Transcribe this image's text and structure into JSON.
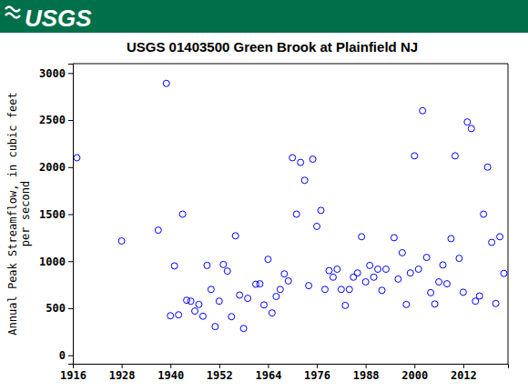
{
  "header": {
    "logo": "USGS"
  },
  "chart_data": {
    "type": "scatter",
    "title": "USGS 01403500 Green Brook at Plainfield NJ",
    "ylabel": [
      "Annual Peak Streamflow, in cubic feet",
      "per second"
    ],
    "x": [
      1917,
      1928,
      1937,
      1939,
      1940,
      1941,
      1942,
      1943,
      1944,
      1945,
      1946,
      1947,
      1948,
      1949,
      1950,
      1951,
      1952,
      1953,
      1954,
      1955,
      1956,
      1957,
      1958,
      1959,
      1961,
      1962,
      1963,
      1964,
      1965,
      1966,
      1967,
      1968,
      1969,
      1970,
      1971,
      1972,
      1973,
      1974,
      1975,
      1976,
      1977,
      1978,
      1979,
      1980,
      1981,
      1982,
      1983,
      1984,
      1985,
      1986,
      1987,
      1988,
      1989,
      1990,
      1991,
      1992,
      1993,
      1995,
      1996,
      1997,
      1998,
      1999,
      2000,
      2001,
      2002,
      2003,
      2004,
      2005,
      2006,
      2007,
      2008,
      2009,
      2010,
      2011,
      2012,
      2013,
      2014,
      2015,
      2016,
      2017,
      2018,
      2019,
      2020,
      2021,
      2022
    ],
    "values": [
      2100,
      1215,
      1330,
      2890,
      420,
      950,
      430,
      1500,
      585,
      575,
      470,
      540,
      415,
      955,
      700,
      305,
      575,
      965,
      895,
      410,
      1270,
      640,
      285,
      605,
      755,
      760,
      535,
      1020,
      450,
      625,
      700,
      865,
      790,
      2100,
      1500,
      2050,
      1860,
      740,
      2085,
      1370,
      1540,
      700,
      900,
      830,
      915,
      700,
      530,
      700,
      830,
      875,
      1260,
      780,
      955,
      830,
      915,
      690,
      915,
      1250,
      810,
      1090,
      540,
      875,
      2120,
      915,
      2600,
      1040,
      665,
      545,
      780,
      960,
      760,
      1240,
      2120,
      1030,
      670,
      2480,
      2410,
      575,
      630,
      1500,
      2000,
      1200,
      550,
      1260,
      870
    ],
    "color": "#0000ff",
    "marker": "circle-open",
    "xlim": [
      1916,
      2023
    ],
    "xticks": [
      1916,
      1928,
      1940,
      1952,
      1964,
      1976,
      1988,
      2000,
      2012
    ],
    "ylim": [
      -90,
      3100
    ],
    "yticks": [
      0,
      500,
      1000,
      1500,
      2000,
      2500,
      3000
    ],
    "grid": false
  }
}
